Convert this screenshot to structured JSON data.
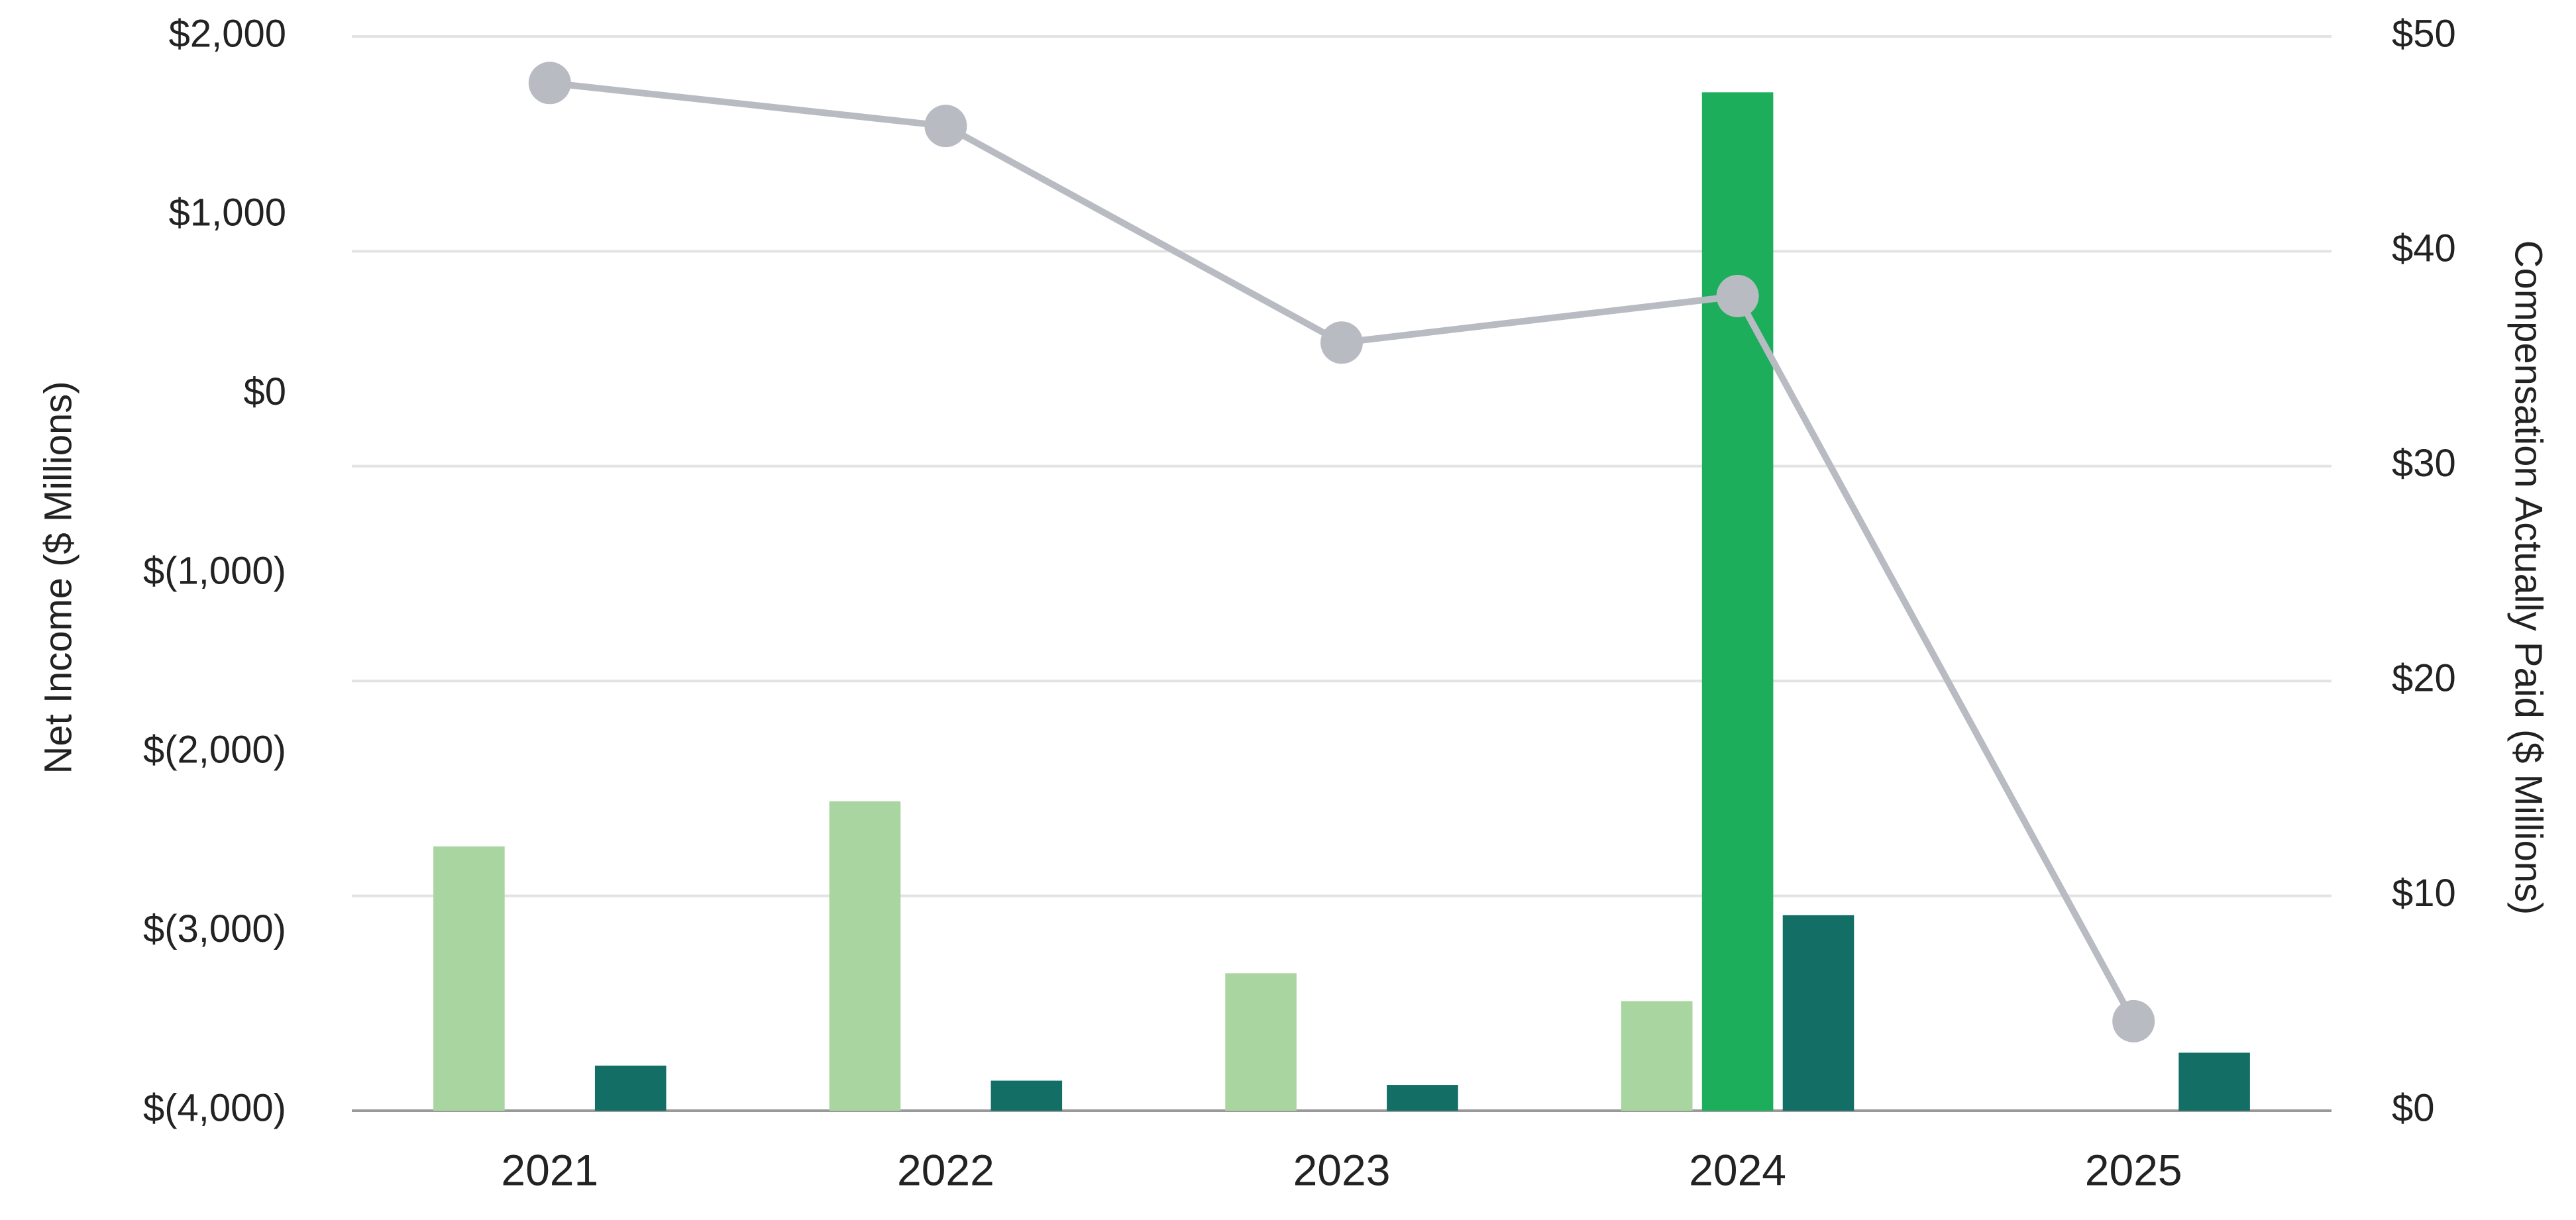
{
  "chart_data": {
    "type": "bar",
    "categories": [
      "2021",
      "2022",
      "2023",
      "2024",
      "2025"
    ],
    "y_label": "Net Income ($ Millions)",
    "y2_label": "Compensation Actually Paid ($ Millions)",
    "ylim": [
      -4000,
      2000
    ],
    "yticks": [
      {
        "value": 2000,
        "label": "$2,000"
      },
      {
        "value": 1000,
        "label": "$1,000"
      },
      {
        "value": 0,
        "label": "$0"
      },
      {
        "value": -1000,
        "label": "$(1,000)"
      },
      {
        "value": -2000,
        "label": "$(2,000)"
      },
      {
        "value": -3000,
        "label": "$(3,000)"
      },
      {
        "value": -4000,
        "label": "$(4,000)"
      }
    ],
    "y2lim": [
      0,
      50
    ],
    "y2ticks": [
      {
        "value": 0,
        "label": "$0"
      },
      {
        "value": 10,
        "label": "$10"
      },
      {
        "value": 20,
        "label": "$20"
      },
      {
        "value": 30,
        "label": "$30"
      },
      {
        "value": 40,
        "label": "$40"
      },
      {
        "value": 50,
        "label": "$50"
      }
    ],
    "grid": true,
    "series": [
      {
        "type": "bar",
        "axis": "y2",
        "color": "#a8d5a0",
        "values": [
          12.3,
          14.4,
          6.4,
          5.1,
          null
        ]
      },
      {
        "type": "bar",
        "axis": "y2",
        "color": "#1dae5c",
        "values": [
          null,
          null,
          null,
          47.4,
          null
        ]
      },
      {
        "type": "bar",
        "axis": "y2",
        "color": "#136e66",
        "values": [
          2.1,
          1.4,
          1.2,
          9.1,
          2.7
        ]
      },
      {
        "type": "line",
        "axis": "y",
        "color": "#b8bcc2",
        "values": [
          1740,
          1500,
          290,
          550,
          -3500
        ]
      }
    ]
  }
}
